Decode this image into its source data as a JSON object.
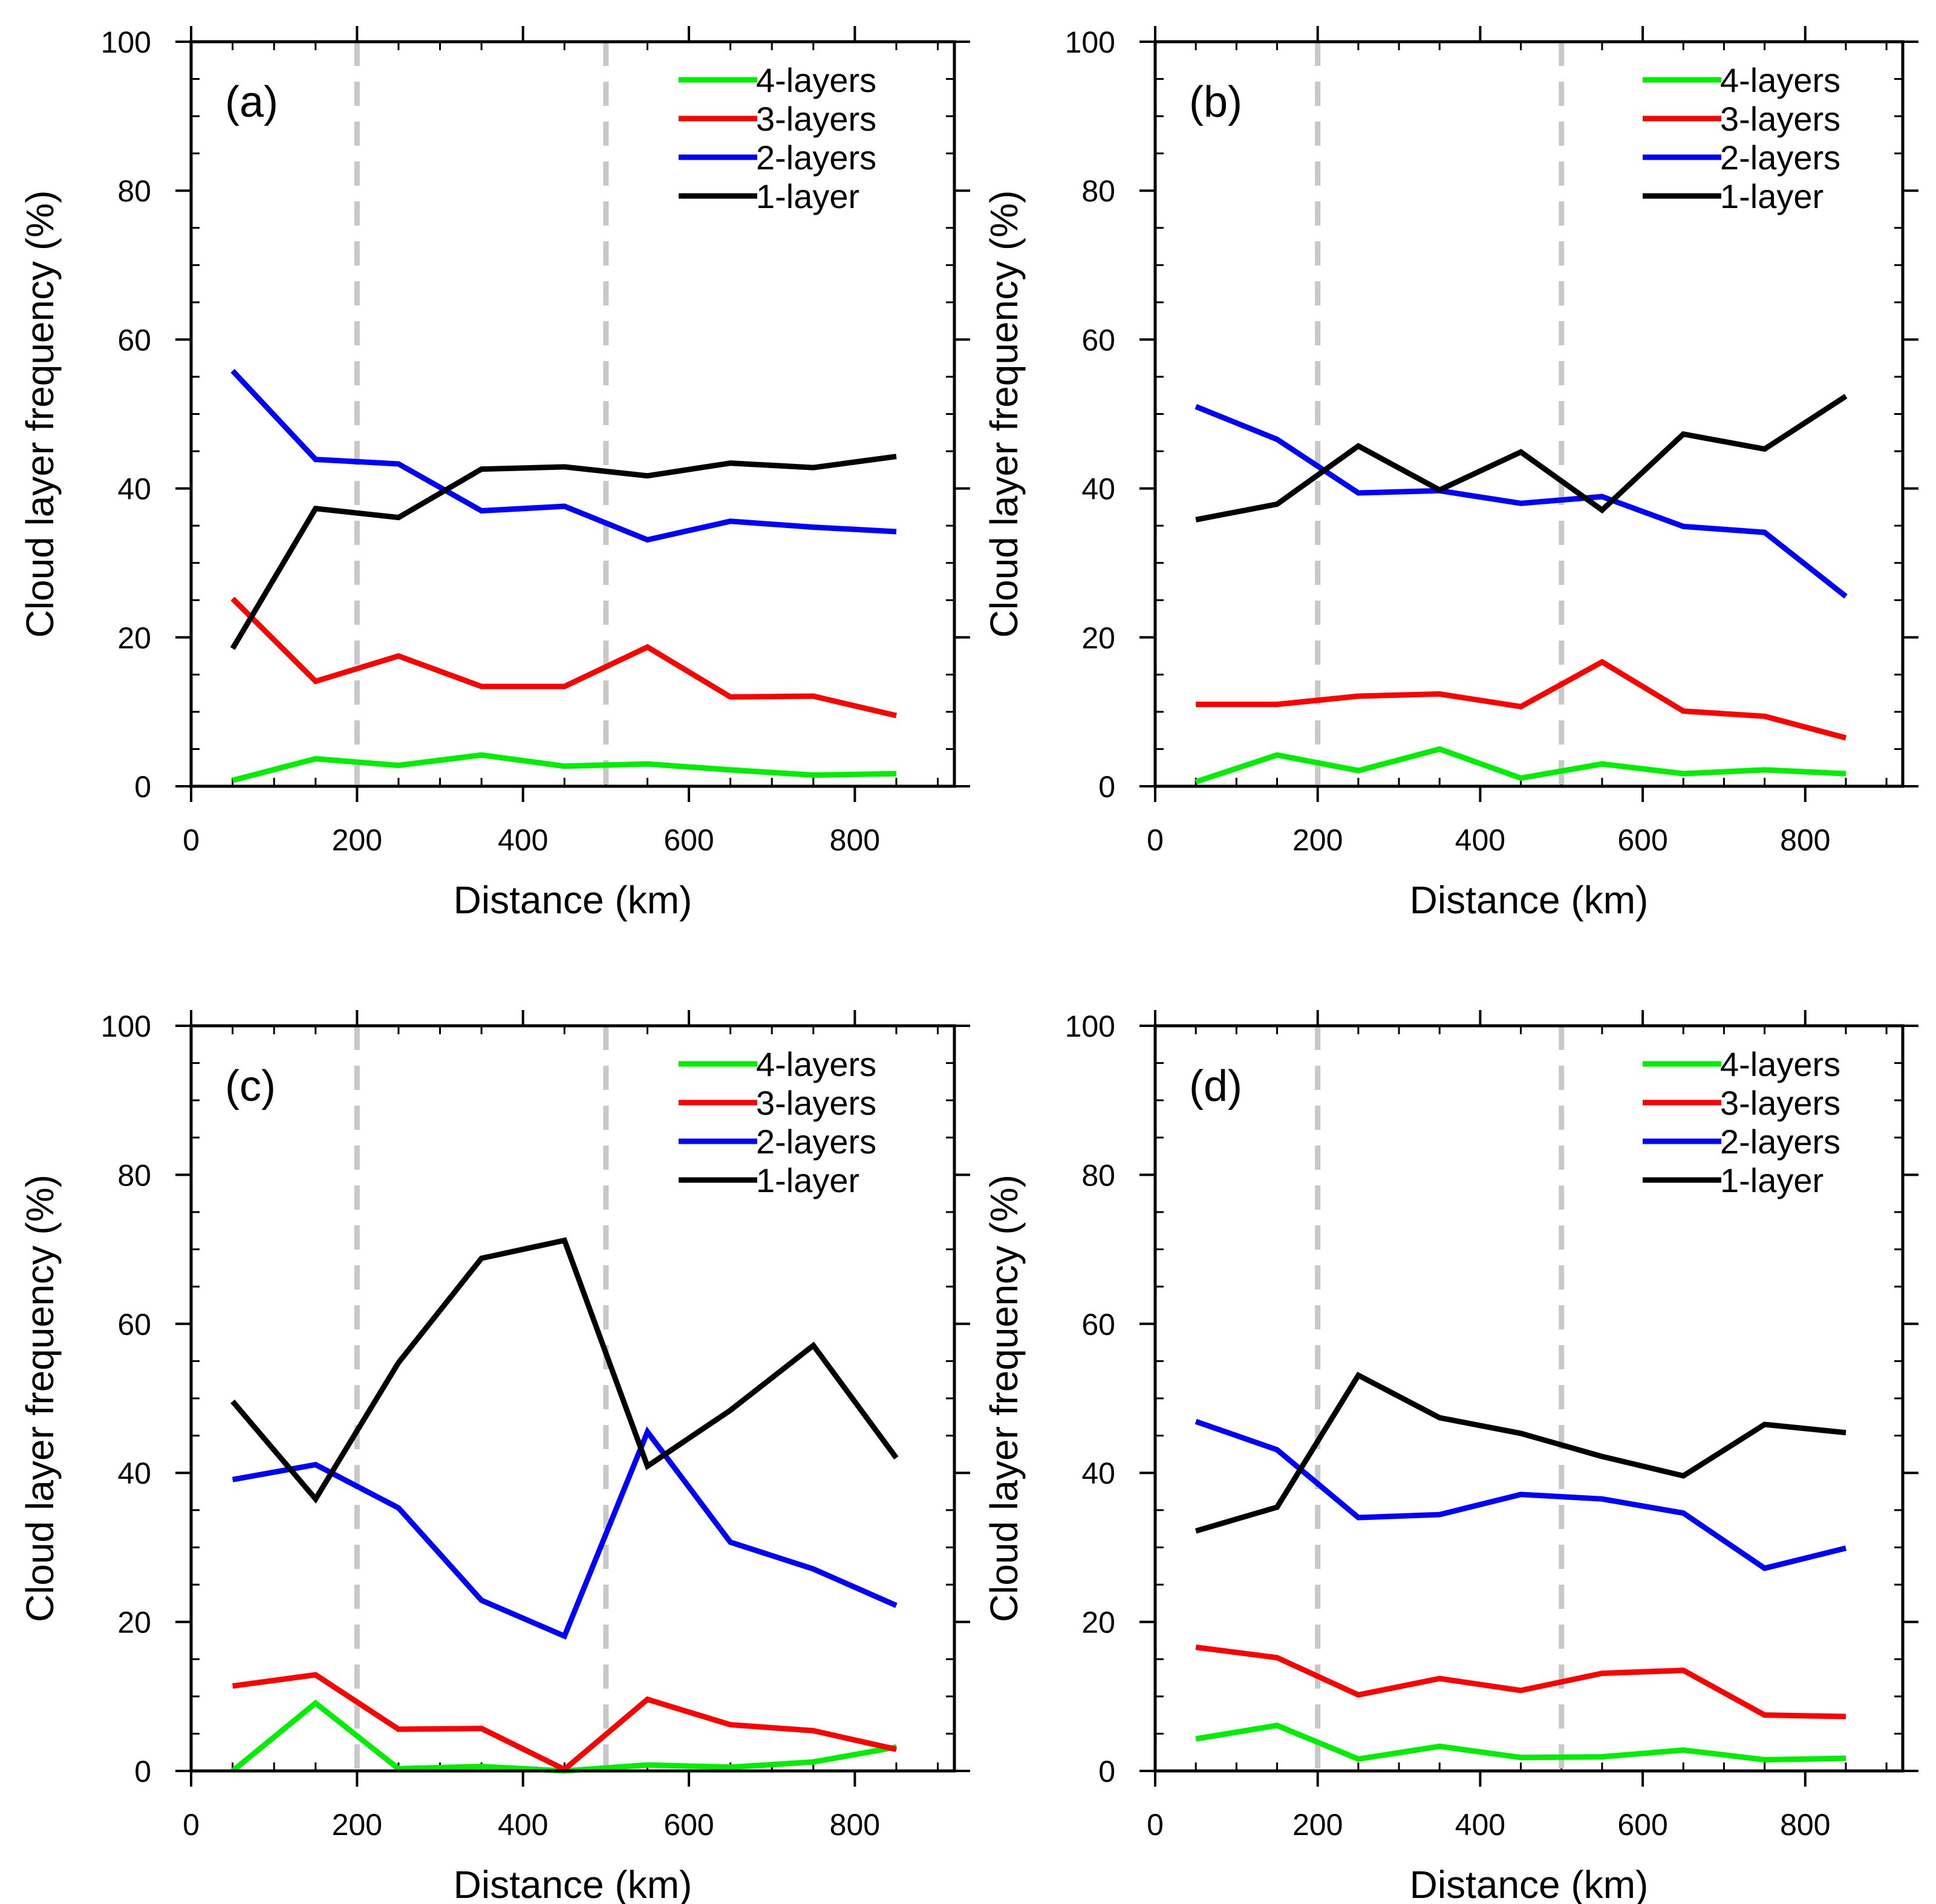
{
  "chart_data": [
    {
      "type": "line",
      "panel_label": "(a)",
      "xlabel": "Distance (km)",
      "ylabel": "Cloud layer frequency (%)",
      "xlim": [
        0,
        920
      ],
      "ylim": [
        0,
        100
      ],
      "xticks": [
        0,
        200,
        400,
        600,
        800
      ],
      "yticks": [
        0,
        20,
        40,
        60,
        80,
        100
      ],
      "reference_lines_x": [
        200,
        500
      ],
      "x": [
        50,
        150,
        250,
        350,
        450,
        550,
        650,
        750,
        850
      ],
      "series": [
        {
          "name": "4-layers",
          "color": "#00ee00",
          "values": [
            0.8,
            3.7,
            2.8,
            4.2,
            2.7,
            3.0,
            2.2,
            1.5,
            1.7
          ]
        },
        {
          "name": "3-layers",
          "color": "#ff0000",
          "values": [
            25.2,
            14.1,
            17.5,
            13.4,
            13.4,
            18.7,
            12.0,
            12.1,
            9.5
          ]
        },
        {
          "name": "2-layers",
          "color": "#0000ff",
          "values": [
            55.8,
            43.9,
            43.3,
            37.0,
            37.6,
            33.1,
            35.6,
            34.8,
            34.2
          ]
        },
        {
          "name": "1-layer",
          "color": "#000000",
          "values": [
            18.5,
            37.3,
            36.1,
            42.6,
            42.9,
            41.7,
            43.4,
            42.8,
            44.3
          ]
        }
      ]
    },
    {
      "type": "line",
      "panel_label": "(b)",
      "xlabel": "Distance (km)",
      "ylabel": "Cloud layer frequency (%)",
      "xlim": [
        0,
        920
      ],
      "ylim": [
        0,
        100
      ],
      "xticks": [
        0,
        200,
        400,
        600,
        800
      ],
      "yticks": [
        0,
        20,
        40,
        60,
        80,
        100
      ],
      "reference_lines_x": [
        200,
        500
      ],
      "x": [
        50,
        150,
        250,
        350,
        450,
        550,
        650,
        750,
        850
      ],
      "series": [
        {
          "name": "4-layers",
          "color": "#00ee00",
          "values": [
            0.6,
            4.2,
            2.1,
            5.0,
            1.1,
            3.0,
            1.7,
            2.2,
            1.7
          ]
        },
        {
          "name": "3-layers",
          "color": "#ff0000",
          "values": [
            11.0,
            11.0,
            12.1,
            12.4,
            10.7,
            16.7,
            10.1,
            9.4,
            6.5
          ]
        },
        {
          "name": "2-layers",
          "color": "#0000ff",
          "values": [
            51.0,
            46.6,
            39.4,
            39.7,
            38.0,
            38.9,
            34.9,
            34.1,
            25.5
          ]
        },
        {
          "name": "1-layer",
          "color": "#000000",
          "values": [
            35.8,
            37.9,
            45.7,
            39.8,
            44.9,
            37.1,
            47.3,
            45.3,
            52.4
          ]
        }
      ]
    },
    {
      "type": "line",
      "panel_label": "(c)",
      "xlabel": "Distance (km)",
      "ylabel": "Cloud layer frequency (%)",
      "xlim": [
        0,
        920
      ],
      "ylim": [
        0,
        100
      ],
      "xticks": [
        0,
        200,
        400,
        600,
        800
      ],
      "yticks": [
        0,
        20,
        40,
        60,
        80,
        100
      ],
      "reference_lines_x": [
        200,
        500
      ],
      "x": [
        50,
        150,
        250,
        350,
        450,
        550,
        650,
        750,
        850
      ],
      "series": [
        {
          "name": "4-layers",
          "color": "#00ee00",
          "values": [
            0.0,
            9.1,
            0.3,
            0.6,
            0.0,
            0.8,
            0.5,
            1.2,
            3.2
          ]
        },
        {
          "name": "3-layers",
          "color": "#ff0000",
          "values": [
            11.4,
            12.9,
            5.6,
            5.7,
            0.2,
            9.6,
            6.2,
            5.4,
            2.9
          ]
        },
        {
          "name": "2-layers",
          "color": "#0000ff",
          "values": [
            39.1,
            41.1,
            35.3,
            22.9,
            18.1,
            45.5,
            30.7,
            27.1,
            22.2
          ]
        },
        {
          "name": "1-layer",
          "color": "#000000",
          "values": [
            49.6,
            36.5,
            54.8,
            68.8,
            71.2,
            40.9,
            48.4,
            57.1,
            42.0
          ]
        }
      ]
    },
    {
      "type": "line",
      "panel_label": "(d)",
      "xlabel": "Distance (km)",
      "ylabel": "Cloud layer frequency (%)",
      "xlim": [
        0,
        920
      ],
      "ylim": [
        0,
        100
      ],
      "xticks": [
        0,
        200,
        400,
        600,
        800
      ],
      "yticks": [
        0,
        20,
        40,
        60,
        80,
        100
      ],
      "reference_lines_x": [
        200,
        500
      ],
      "x": [
        50,
        150,
        250,
        350,
        450,
        550,
        650,
        750,
        850
      ],
      "series": [
        {
          "name": "4-layers",
          "color": "#00ee00",
          "values": [
            4.3,
            6.1,
            1.6,
            3.3,
            1.8,
            1.9,
            2.8,
            1.5,
            1.7
          ]
        },
        {
          "name": "3-layers",
          "color": "#ff0000",
          "values": [
            16.6,
            15.2,
            10.2,
            12.4,
            10.8,
            13.1,
            13.5,
            7.5,
            7.3
          ]
        },
        {
          "name": "2-layers",
          "color": "#0000ff",
          "values": [
            46.9,
            43.1,
            34.0,
            34.4,
            37.1,
            36.5,
            34.6,
            27.2,
            29.9
          ]
        },
        {
          "name": "1-layer",
          "color": "#000000",
          "values": [
            32.2,
            35.4,
            53.1,
            47.4,
            45.3,
            42.2,
            39.6,
            46.5,
            45.4
          ]
        }
      ]
    }
  ]
}
